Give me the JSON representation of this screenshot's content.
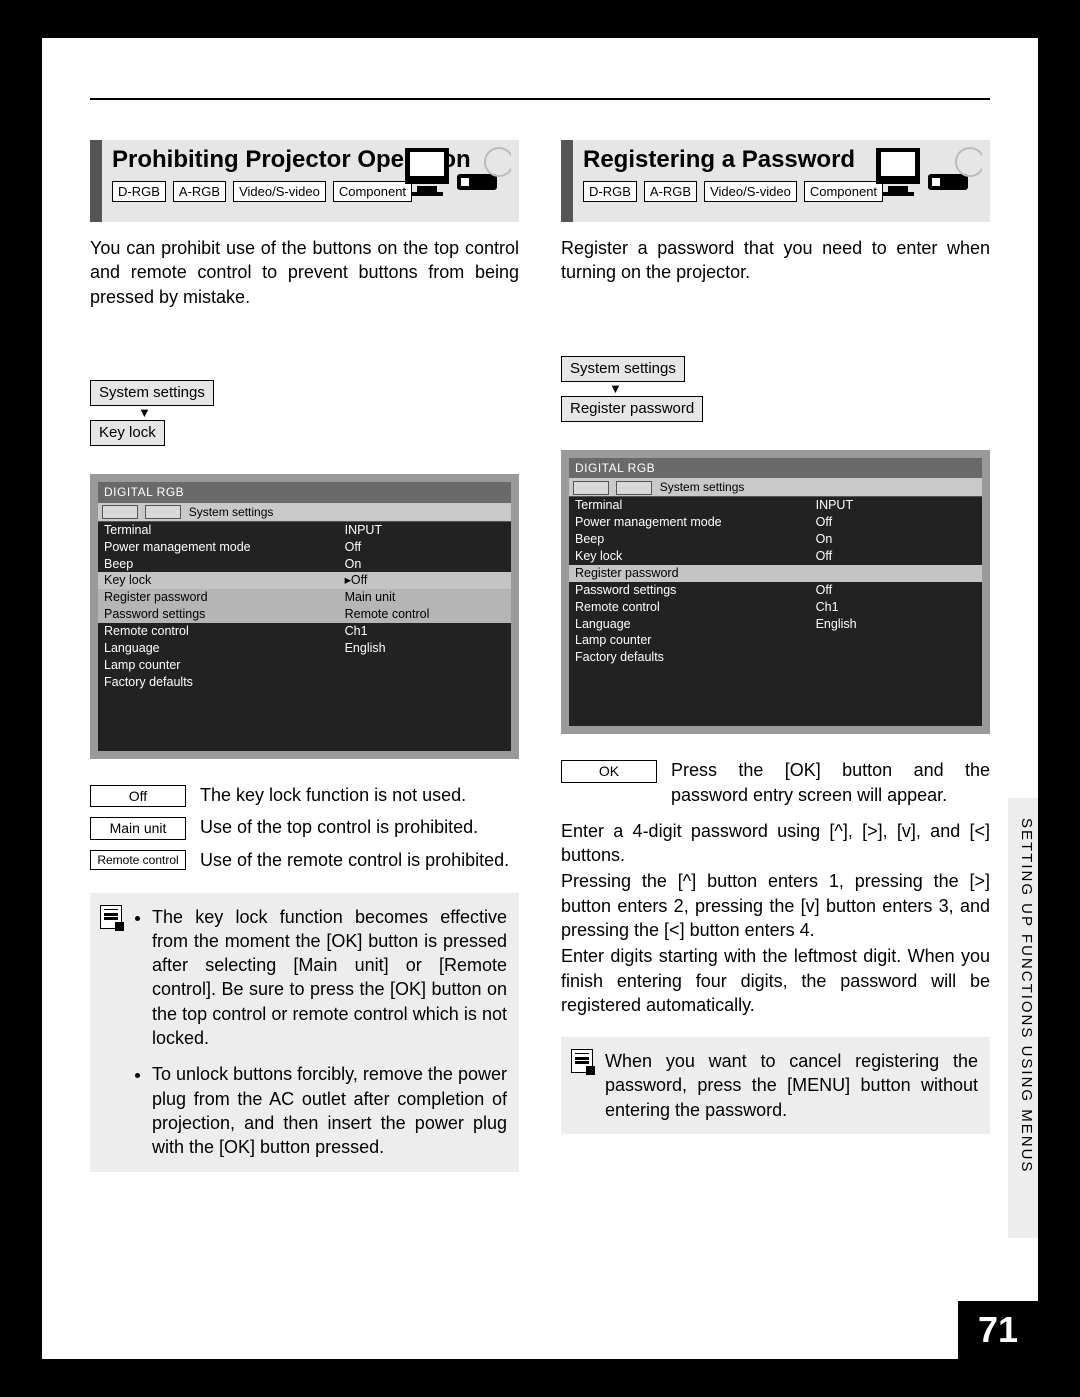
{
  "page_number": "71",
  "side_tab_text": "SETTING UP FUNCTIONS USING MENUS",
  "input_tags": [
    "D-RGB",
    "A-RGB",
    "Video/S-video",
    "Component"
  ],
  "left": {
    "title": "Prohibiting Projector Operation",
    "intro": "You can prohibit use of the buttons on the top control and remote control to prevent buttons from being pressed by mistake.",
    "nav_top": "System settings",
    "nav_bottom": "Key lock",
    "menu": {
      "titlebar": "DIGITAL RGB",
      "tabbar_label": "System settings",
      "rows": [
        {
          "label": "Terminal",
          "value": "INPUT",
          "hi": false
        },
        {
          "label": "Power management mode",
          "value": "Off",
          "hi": false
        },
        {
          "label": "Beep",
          "value": "On",
          "hi": false
        },
        {
          "label": "Key lock",
          "value": "▸Off",
          "hi": true
        },
        {
          "label": "Register password",
          "value": "Main unit",
          "hi2": true
        },
        {
          "label": "Password settings",
          "value": "Remote control",
          "hi2": true
        },
        {
          "label": "Remote control",
          "value": "Ch1",
          "hi": false
        },
        {
          "label": "Language",
          "value": "English",
          "hi": false
        },
        {
          "label": "Lamp counter",
          "value": "",
          "hi": false
        },
        {
          "label": "Factory defaults",
          "value": "",
          "hi": false
        }
      ]
    },
    "options": [
      {
        "box": "Off",
        "desc": "The key lock function is not used."
      },
      {
        "box": "Main unit",
        "desc": "Use of the top control is prohibited."
      },
      {
        "box": "Remote control",
        "desc": "Use of the remote control is prohibited."
      }
    ],
    "note_items": [
      "The key lock function becomes effective from the moment the [OK] button is pressed after selecting [Main unit] or [Remote control]. Be sure to press the [OK] button on the top control or remote control which is not locked.",
      "To unlock buttons forcibly, remove the power plug from the AC outlet after completion of projection, and then insert the power plug with the [OK] button pressed."
    ]
  },
  "right": {
    "title": "Registering a Password",
    "intro": "Register a password that you need to enter when turning on the projector.",
    "nav_top": "System settings",
    "nav_bottom": "Register password",
    "menu": {
      "titlebar": "DIGITAL RGB",
      "tabbar_label": "System settings",
      "rows": [
        {
          "label": "Terminal",
          "value": "INPUT",
          "hi": false
        },
        {
          "label": "Power management mode",
          "value": "Off",
          "hi": false
        },
        {
          "label": "Beep",
          "value": "On",
          "hi": false
        },
        {
          "label": "Key lock",
          "value": "Off",
          "hi": false
        },
        {
          "label": "Register password",
          "value": "",
          "hi": true
        },
        {
          "label": "Password settings",
          "value": "Off",
          "hi": false
        },
        {
          "label": "Remote control",
          "value": "Ch1",
          "hi": false
        },
        {
          "label": "Language",
          "value": "English",
          "hi": false
        },
        {
          "label": "Lamp counter",
          "value": "",
          "hi": false
        },
        {
          "label": "Factory defaults",
          "value": "",
          "hi": false
        }
      ]
    },
    "option_box": "OK",
    "option_desc": "Press the [OK] button and the password entry screen will appear.",
    "para1": "Enter a 4-digit password using [^], [>], [v], and [<] buttons.",
    "para2": "Pressing the [^] button enters 1, pressing the [>] button enters 2, pressing the [v] button enters 3, and pressing the [<] button enters 4.",
    "para3": "Enter digits starting with the leftmost digit. When you finish entering four digits, the password will be registered automatically.",
    "note_text": "When you want to cancel registering the password, press the [MENU] button without entering the password."
  },
  "colors": {
    "page_bg": "#ffffff",
    "outer_bg": "#000000",
    "head_bg": "#e6e6e6",
    "head_border": "#555555",
    "menu_border": "#9a9a9a",
    "menu_bg": "#222222",
    "menu_hi": "#c4c4c4",
    "note_bg": "#ededed"
  }
}
